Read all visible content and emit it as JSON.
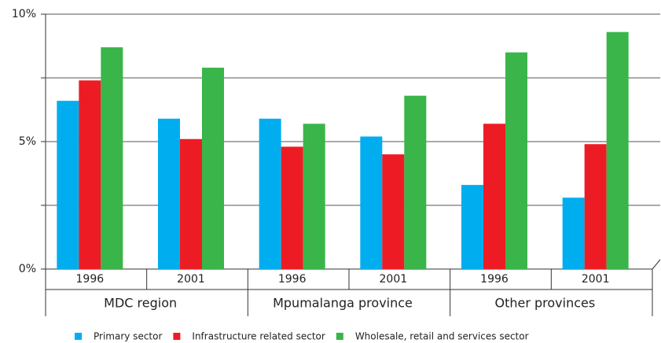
{
  "chart_data": {
    "type": "bar",
    "groups": [
      "MDC region",
      "Mpumalanga province",
      "Other provinces"
    ],
    "categories": [
      "1996",
      "2001",
      "1996",
      "2001",
      "1996",
      "2001"
    ],
    "series": [
      {
        "name": "Primary sector",
        "color": "#00aeef",
        "values": [
          6.6,
          5.9,
          5.9,
          5.2,
          3.3,
          2.8
        ]
      },
      {
        "name": "Infrastructure related sector",
        "color": "#ed1c24",
        "values": [
          7.4,
          5.1,
          4.8,
          4.5,
          5.7,
          4.9
        ]
      },
      {
        "name": "Wholesale, retail and services sector",
        "color": "#39b54a",
        "values": [
          8.7,
          7.9,
          5.7,
          6.8,
          8.5,
          9.3
        ]
      }
    ],
    "ylim": [
      0,
      10
    ],
    "yticks": [
      {
        "value": 0,
        "label": "0%"
      },
      2.5,
      {
        "value": 5,
        "label": "5%"
      },
      7.5,
      {
        "value": 10,
        "label": "10%"
      }
    ],
    "grid": true,
    "legend": "bottom"
  }
}
